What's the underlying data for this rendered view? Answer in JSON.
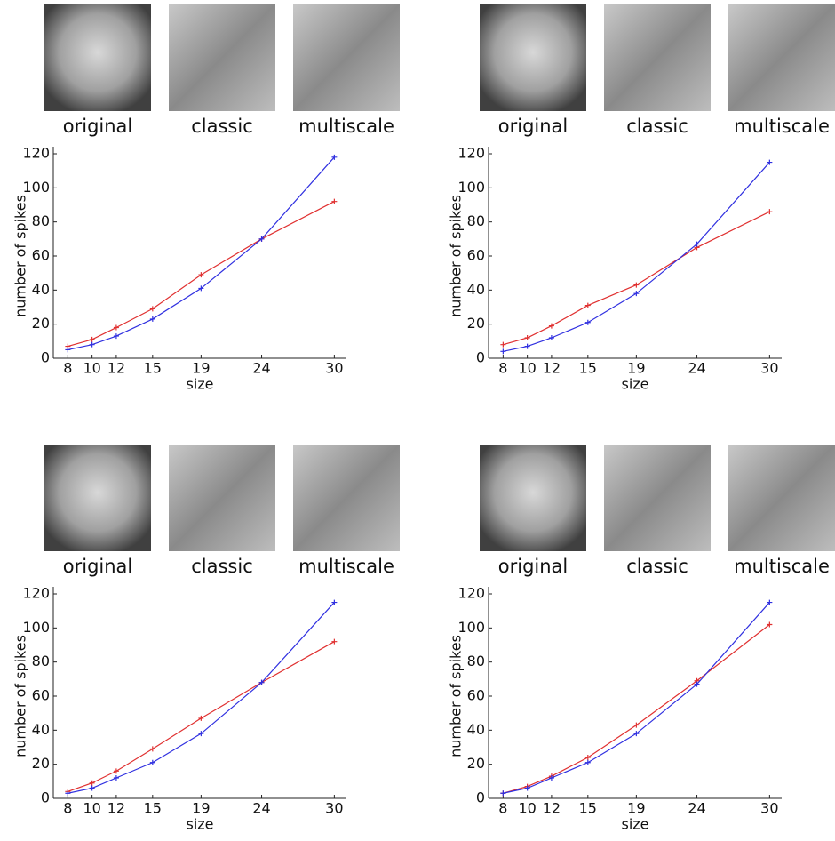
{
  "chart_data": [
    {
      "type": "line",
      "image_captions": [
        "original",
        "classic",
        "multiscale"
      ],
      "x_label": "size",
      "y_label": "number of spikes",
      "x": [
        8,
        10,
        12,
        15,
        19,
        24,
        30
      ],
      "xlim": [
        6.8,
        31
      ],
      "xticks": [
        8,
        10,
        12,
        15,
        19,
        24,
        30
      ],
      "ylim": [
        0,
        120
      ],
      "yticks": [
        0,
        20,
        40,
        60,
        80,
        100,
        120
      ],
      "series": [
        {
          "color": "#e03030",
          "values": [
            7,
            11,
            18,
            29,
            49,
            70,
            92
          ]
        },
        {
          "color": "#3030e0",
          "values": [
            5,
            8,
            13,
            23,
            41,
            70,
            118
          ]
        }
      ]
    },
    {
      "type": "line",
      "image_captions": [
        "original",
        "classic",
        "multiscale"
      ],
      "x_label": "size",
      "y_label": "number of spikes",
      "x": [
        8,
        10,
        12,
        15,
        19,
        24,
        30
      ],
      "xlim": [
        6.8,
        31
      ],
      "xticks": [
        8,
        10,
        12,
        15,
        19,
        24,
        30
      ],
      "ylim": [
        0,
        120
      ],
      "yticks": [
        0,
        20,
        40,
        60,
        80,
        100,
        120
      ],
      "series": [
        {
          "color": "#e03030",
          "values": [
            8,
            12,
            19,
            31,
            43,
            65,
            86
          ]
        },
        {
          "color": "#3030e0",
          "values": [
            4,
            7,
            12,
            21,
            38,
            67,
            115
          ]
        }
      ]
    },
    {
      "type": "line",
      "image_captions": [
        "original",
        "classic",
        "multiscale"
      ],
      "x_label": "size",
      "y_label": "number of spikes",
      "x": [
        8,
        10,
        12,
        15,
        19,
        24,
        30
      ],
      "xlim": [
        6.8,
        31
      ],
      "xticks": [
        8,
        10,
        12,
        15,
        19,
        24,
        30
      ],
      "ylim": [
        0,
        120
      ],
      "yticks": [
        0,
        20,
        40,
        60,
        80,
        100,
        120
      ],
      "series": [
        {
          "color": "#e03030",
          "values": [
            4,
            9,
            16,
            29,
            47,
            68,
            92
          ]
        },
        {
          "color": "#3030e0",
          "values": [
            3,
            6,
            12,
            21,
            38,
            68,
            115
          ]
        }
      ]
    },
    {
      "type": "line",
      "image_captions": [
        "original",
        "classic",
        "multiscale"
      ],
      "x_label": "size",
      "y_label": "number of spikes",
      "x": [
        8,
        10,
        12,
        15,
        19,
        24,
        30
      ],
      "xlim": [
        6.8,
        31
      ],
      "xticks": [
        8,
        10,
        12,
        15,
        19,
        24,
        30
      ],
      "ylim": [
        0,
        120
      ],
      "yticks": [
        0,
        20,
        40,
        60,
        80,
        100,
        120
      ],
      "series": [
        {
          "color": "#e03030",
          "values": [
            3,
            7,
            13,
            24,
            43,
            69,
            102
          ]
        },
        {
          "color": "#3030e0",
          "values": [
            3,
            6,
            12,
            21,
            38,
            67,
            115
          ]
        }
      ]
    }
  ]
}
